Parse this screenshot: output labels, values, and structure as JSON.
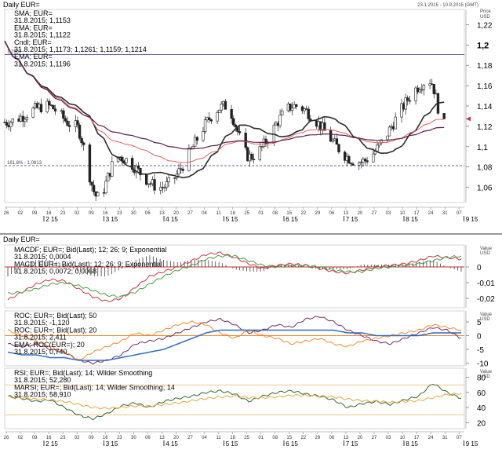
{
  "colors": {
    "sma": "#5c1f4e",
    "ema_fast": "#e5605a",
    "ema_slow": "#2b2b2b",
    "candle_up": "#ffffff",
    "candle_down": "#222222",
    "ref_line": "#2c2c8c",
    "macd": "#d2304a",
    "macd_signal": "#46a23c",
    "roc": "#7a2a62",
    "roc_fast": "#f08a2e",
    "roc_ema": "#2d6cc0",
    "rsi": "#2f6a2a",
    "marsi": "#e8a640",
    "rsi_band": "#e8a640",
    "zero_line": "#c0302a"
  },
  "chart_data": [
    {
      "type": "candlestick",
      "panel": "price",
      "title": "Daily EUR=",
      "header_range": "23.1.2015 - 10.9.2015 (GMT)",
      "price_unit": "Price\nUSD",
      "legend": [
        {
          "text": "SMA; EUR=",
          "color": "#000000"
        },
        {
          "text": "31.8.2015; 1,1153",
          "color": "#000000"
        },
        {
          "text": "EMA; EUR=",
          "color": "#d2304a"
        },
        {
          "text": "31.8.2015; 1,1122",
          "color": "#d2304a"
        },
        {
          "text": "Cndl; EUR=",
          "color": "#000000"
        },
        {
          "text": "31.8.2015; 1,1173; 1,1261; 1,1159; 1,1214",
          "color": "#000000"
        },
        {
          "text": "EMA; EUR=",
          "color": "#d2304a"
        },
        {
          "text": "31.8.2015; 1,1196",
          "color": "#d2304a"
        }
      ],
      "ylim": [
        1.045,
        1.235
      ],
      "yticks": [
        "1,22",
        "1,2",
        "1,18",
        "1,16",
        "1,14",
        "1,12",
        "1,1",
        "1,08",
        "1,06"
      ],
      "ytick_values": [
        1.22,
        1.2,
        1.18,
        1.16,
        1.14,
        1.12,
        1.1,
        1.08,
        1.06
      ],
      "bold_tick": "1,2",
      "horizontal_lines": [
        {
          "value": 1.1907,
          "label": "1,1907"
        },
        {
          "value": 1.0813,
          "label": "161,8% - 1,0813"
        }
      ],
      "x_day_labels": [
        "26",
        "02",
        "09",
        "16",
        "23",
        "02",
        "09",
        "16",
        "23",
        "30",
        "06",
        "13",
        "20",
        "27",
        "04",
        "11",
        "18",
        "25",
        "01",
        "08",
        "15",
        "22",
        "29",
        "06",
        "13",
        "20",
        "27",
        "03",
        "10",
        "17",
        "24",
        "31",
        "07"
      ],
      "x_month_labels": [
        "2 15",
        "3 15",
        "4 15",
        "5 15",
        "6 15",
        "7 15",
        "8 15",
        "9 15"
      ],
      "last_value_label": "1,1214",
      "key_points": [
        {
          "date": "2015-01-26",
          "close": 1.124
        },
        {
          "date": "2015-02-16",
          "close": 1.14
        },
        {
          "date": "2015-03-02",
          "close": 1.12
        },
        {
          "date": "2015-03-13",
          "close": 1.05
        },
        {
          "date": "2015-03-23",
          "close": 1.09
        },
        {
          "date": "2015-04-13",
          "close": 1.06
        },
        {
          "date": "2015-05-15",
          "close": 1.14
        },
        {
          "date": "2015-05-27",
          "close": 1.09
        },
        {
          "date": "2015-06-18",
          "close": 1.14
        },
        {
          "date": "2015-07-20",
          "close": 1.085
        },
        {
          "date": "2015-08-24",
          "close": 1.165
        },
        {
          "date": "2015-08-31",
          "close": 1.1214
        }
      ]
    },
    {
      "type": "line",
      "panel": "macd",
      "title": "Daily EUR=",
      "legend": [
        {
          "text": "MACDF; EUR=; Bid(Last); 12; 26; 9; Exponential",
          "color": "#000000"
        },
        {
          "text": "31.8.2015; 0,0004",
          "color": "#000000"
        },
        {
          "text": "MACD; EUR=; Bid(Last); 12; 26; 9; Exponential",
          "color": "#d2304a"
        },
        {
          "text": "31.8.2015; 0,0072; 0,0068",
          "color": "#d2304a"
        }
      ],
      "value_unit": "Value\nUSD",
      "yticks": [
        "0",
        "-0,01",
        "-0,02"
      ],
      "ytick_values": [
        0,
        -0.01,
        -0.02
      ],
      "ylim": [
        -0.026,
        0.014
      ],
      "series": [
        {
          "name": "MACD",
          "values": [
            -0.021,
            -0.016,
            -0.011,
            -0.008,
            -0.009,
            -0.014,
            -0.019,
            -0.022,
            -0.02,
            -0.013,
            -0.006,
            -0.003,
            0.0,
            0.004,
            0.008,
            0.009,
            0.006,
            0.002,
            -0.001,
            0.001,
            0.002,
            0.001,
            -0.001,
            -0.003,
            -0.004,
            -0.002,
            0.0,
            0.001,
            0.002,
            0.004,
            0.007,
            0.006,
            0.005
          ]
        },
        {
          "name": "Signal",
          "values": [
            -0.017,
            -0.016,
            -0.014,
            -0.011,
            -0.01,
            -0.012,
            -0.015,
            -0.018,
            -0.019,
            -0.016,
            -0.011,
            -0.006,
            -0.002,
            0.001,
            0.005,
            0.007,
            0.007,
            0.004,
            0.001,
            0.0,
            0.001,
            0.001,
            0.0,
            -0.002,
            -0.003,
            -0.003,
            -0.001,
            0.0,
            0.001,
            0.002,
            0.004,
            0.006,
            0.007
          ]
        }
      ]
    },
    {
      "type": "line",
      "panel": "roc",
      "legend": [
        {
          "text": "ROC; EUR=; Bid(Last); 50",
          "color": "#7a2a62"
        },
        {
          "text": "31.8.2015; -1,120",
          "color": "#000000"
        },
        {
          "text": "ROC; EUR=; Bid(Last); 20",
          "color": "#f08a2e"
        },
        {
          "text": "31.8.2015; 2,411",
          "color": "#f08a2e"
        },
        {
          "text": "EMA; ROC(EUR=); 20",
          "color": "#2d6cc0"
        },
        {
          "text": "31.8.2015; 0,740",
          "color": "#2d6cc0"
        }
      ],
      "value_unit": "Value\nUSD",
      "yticks": [
        "5",
        "0",
        "-5",
        "-10"
      ],
      "ytick_values": [
        5,
        0,
        -5,
        -10
      ],
      "ylim": [
        -11,
        9
      ],
      "series": [
        {
          "name": "ROC 50",
          "values": [
            -3,
            -4,
            -3,
            -5,
            -6,
            -9,
            -10,
            -9,
            -7,
            -3,
            -2,
            -1,
            1,
            3,
            5,
            6,
            4,
            1,
            2,
            4,
            3,
            6,
            7,
            5,
            2,
            0,
            -2,
            -3,
            -1,
            1,
            3,
            2,
            -1
          ]
        },
        {
          "name": "ROC 20",
          "values": [
            2,
            0,
            -2,
            -4,
            -6,
            -9,
            -6,
            -4,
            -2,
            1,
            0,
            2,
            4,
            5,
            4,
            1,
            -1,
            2,
            0,
            -1,
            -3,
            -2,
            -1,
            -3,
            -4,
            -2,
            -1,
            0,
            1,
            2,
            4,
            3,
            2
          ]
        },
        {
          "name": "EMA ROC",
          "values": [
            -6,
            -7,
            -7,
            -8,
            -8,
            -9,
            -9,
            -9,
            -8,
            -7,
            -6,
            -5,
            -3,
            -1,
            1,
            2,
            2,
            2,
            2,
            2,
            2,
            2,
            2,
            2,
            1,
            1,
            0,
            0,
            0,
            0,
            1,
            1,
            1
          ]
        }
      ]
    },
    {
      "type": "line",
      "panel": "rsi",
      "legend": [
        {
          "text": "RSI; EUR=; Bid(Last); 14; Wilder Smoothing",
          "color": "#000000"
        },
        {
          "text": "31.8.2015; 52,280",
          "color": "#2f6a2a"
        },
        {
          "text": "MARSI; EUR=; Bid(Last); 14; Wilder Smoothing; 14",
          "color": "#e8a640"
        },
        {
          "text": "31.8.2015; 58,910",
          "color": "#e8a640"
        }
      ],
      "value_unit": "Value\nUSD",
      "yticks": [
        "80",
        "60",
        "40",
        "20"
      ],
      "ytick_values": [
        80,
        60,
        40,
        20
      ],
      "ylim": [
        12,
        92
      ],
      "band_lines": [
        70,
        30
      ],
      "series": [
        {
          "name": "RSI",
          "values": [
            55,
            52,
            48,
            50,
            40,
            30,
            25,
            32,
            42,
            46,
            40,
            48,
            52,
            55,
            60,
            62,
            58,
            48,
            55,
            60,
            62,
            58,
            55,
            50,
            40,
            45,
            48,
            44,
            50,
            55,
            72,
            60,
            52
          ]
        },
        {
          "name": "MARSI",
          "values": [
            54,
            53,
            51,
            50,
            48,
            44,
            40,
            39,
            40,
            42,
            42,
            44,
            46,
            49,
            52,
            54,
            55,
            53,
            53,
            54,
            56,
            56,
            55,
            54,
            51,
            49,
            48,
            47,
            48,
            49,
            53,
            57,
            59
          ]
        }
      ],
      "x_day_labels": [
        "26",
        "02",
        "09",
        "16",
        "23",
        "02",
        "09",
        "16",
        "23",
        "30",
        "06",
        "13",
        "20",
        "27",
        "04",
        "11",
        "18",
        "25",
        "01",
        "08",
        "15",
        "22",
        "29",
        "06",
        "13",
        "20",
        "27",
        "03",
        "10",
        "17",
        "24",
        "31",
        "07"
      ],
      "x_month_labels": [
        "2 15",
        "3 15",
        "4 15",
        "5 15",
        "6 15",
        "7 15",
        "8 15",
        "9 15"
      ]
    }
  ]
}
